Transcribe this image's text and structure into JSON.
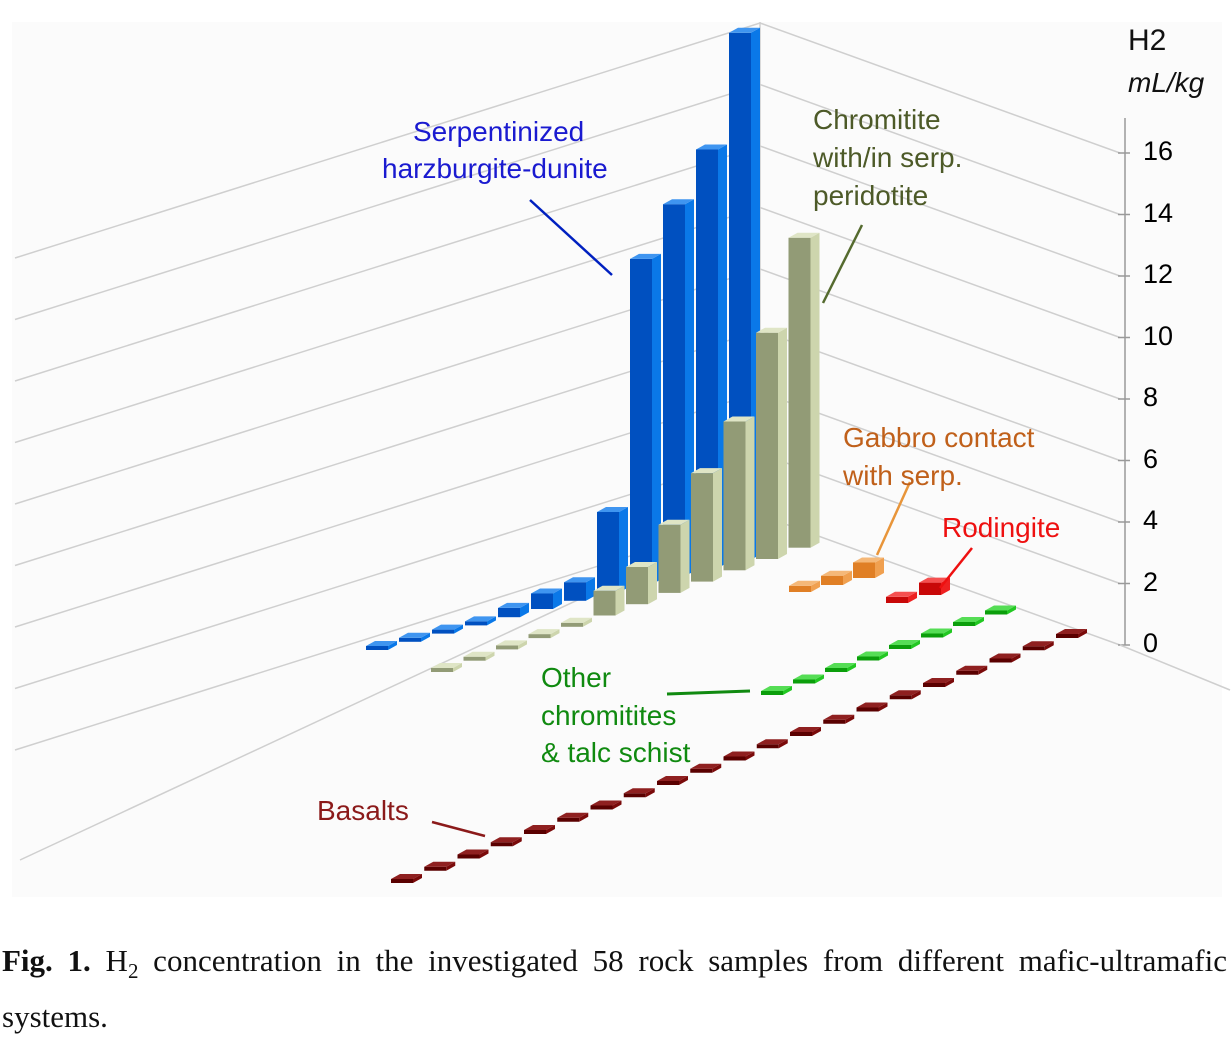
{
  "chart_data": {
    "type": "bar",
    "subtype": "3d-bar",
    "ylabel": "H2",
    "yunit": "mL/kg",
    "ylim": [
      0,
      16
    ],
    "yticks": [
      "0",
      "2",
      "4",
      "6",
      "8",
      "10",
      "12",
      "14",
      "16"
    ],
    "grid": true,
    "series": [
      {
        "name": "Serpentinized harzburgite-dunite",
        "color": "#0a6ee0",
        "values": [
          0,
          0,
          0,
          0,
          0.3,
          0.5,
          0.6,
          2.6,
          10.5,
          12,
          13.5,
          17
        ]
      },
      {
        "name": "Chromitite with/in serp. peridotite",
        "color": "#b8c296",
        "values": [
          0,
          0,
          0,
          0,
          0,
          0.8,
          1.2,
          2.2,
          3.5,
          4.8,
          7.3,
          10
        ]
      },
      {
        "name": "Gabbro contact with serp.",
        "color": "#e8953a",
        "values": [
          0.2,
          0.3,
          0.5
        ]
      },
      {
        "name": "Rodingite",
        "color": "#e01010",
        "values": [
          0.2,
          0.4
        ]
      },
      {
        "name": "Other chromitites & talc schist",
        "color": "#12b012",
        "values": [
          0,
          0,
          0,
          0,
          0,
          0,
          0,
          0
        ]
      },
      {
        "name": "Basalts",
        "color": "#6a0000",
        "values": [
          0,
          0,
          0,
          0,
          0,
          0,
          0,
          0,
          0,
          0,
          0,
          0,
          0,
          0,
          0,
          0,
          0,
          0,
          0,
          0,
          0
        ]
      }
    ],
    "labels": {
      "serp_1": "Serpentinized",
      "serp_2": "harzburgite-dunite",
      "chrom_1": "Chromitite",
      "chrom_2": "with/in serp.",
      "chrom_3": "peridotite",
      "gabbro_1": "Gabbro contact",
      "gabbro_2": "with serp.",
      "rodingite": "Rodingite",
      "other_1": "Other",
      "other_2": "chromitites",
      "other_3": "& talc schist",
      "basalts": "Basalts"
    }
  },
  "caption": {
    "fig": "Fig. 1.",
    "text_a": "H",
    "sub": "2",
    "text_b": " concentration in the investigated 58 rock samples from different mafic-ultramafic systems."
  }
}
